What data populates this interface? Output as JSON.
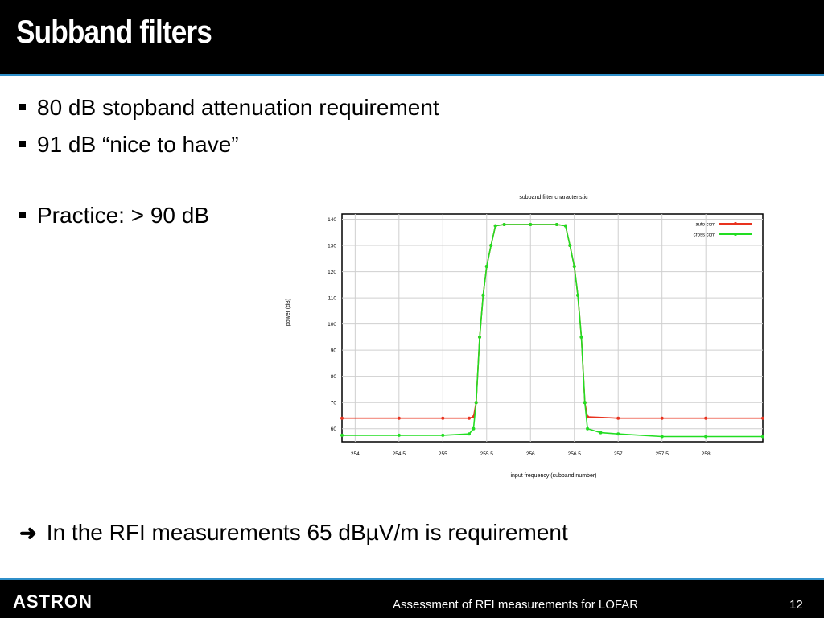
{
  "slide": {
    "title": "Subband filters",
    "bullets": [
      "80 dB stopband attenuation requirement",
      "91 dB “nice to have”",
      "Practice: > 90 dB"
    ],
    "conclusion": "In the RFI measurements 65 dBµV/m is requirement",
    "arrow_icon": "arrow-right-icon"
  },
  "footer": {
    "logo": "ASTRON",
    "text": "Assessment of RFI measurements for LOFAR",
    "page": "12"
  },
  "colors": {
    "header_bg": "#000000",
    "accent_rule": "#2f8fc9",
    "auto_corr": "#e8321e",
    "cross_corr": "#22dd22"
  },
  "chart_data": {
    "type": "line",
    "title": "subband filter characteristic",
    "xlabel": "input frequency (subband number)",
    "ylabel": "power (dB)",
    "xlim": [
      253.85,
      258.65
    ],
    "ylim": [
      55,
      142
    ],
    "xticks": [
      254,
      254.5,
      255,
      255.5,
      256,
      256.5,
      257,
      257.5,
      258
    ],
    "xtick_labels": [
      "254",
      "254.5",
      "255",
      "255.5",
      "256",
      "256.5",
      "257",
      "257.5",
      "258"
    ],
    "yticks": [
      60,
      70,
      80,
      90,
      100,
      110,
      120,
      130,
      140
    ],
    "ytick_labels": [
      "60",
      "70",
      "80",
      "90",
      "100",
      "110",
      "120",
      "130",
      "140"
    ],
    "grid": true,
    "legend_position": "top-right",
    "series": [
      {
        "name": "auto corr",
        "color": "#e8321e",
        "x": [
          253.85,
          254.5,
          255.0,
          255.3,
          255.35,
          255.38,
          255.42,
          255.46,
          255.5,
          255.55,
          255.6,
          255.7,
          256.0,
          256.3,
          256.4,
          256.45,
          256.5,
          256.54,
          256.58,
          256.62,
          256.65,
          257.0,
          257.5,
          258.0,
          258.65
        ],
        "y": [
          64,
          64,
          64,
          64,
          64.5,
          70,
          95,
          111,
          122,
          130,
          137.5,
          138,
          138,
          138,
          137.5,
          130,
          122,
          111,
          95,
          70,
          64.5,
          64,
          64,
          64,
          64
        ]
      },
      {
        "name": "cross corr",
        "color": "#22dd22",
        "x": [
          253.85,
          254.5,
          255.0,
          255.3,
          255.35,
          255.38,
          255.42,
          255.46,
          255.5,
          255.55,
          255.6,
          255.7,
          256.0,
          256.3,
          256.4,
          256.45,
          256.5,
          256.54,
          256.58,
          256.62,
          256.65,
          256.8,
          257.0,
          257.5,
          258.0,
          258.65
        ],
        "y": [
          57.5,
          57.5,
          57.5,
          58,
          60,
          70,
          95,
          111,
          122,
          130,
          137.5,
          138,
          138,
          138,
          137.5,
          130,
          122,
          111,
          95,
          70,
          60,
          58.5,
          58,
          57,
          57,
          57
        ]
      }
    ]
  }
}
